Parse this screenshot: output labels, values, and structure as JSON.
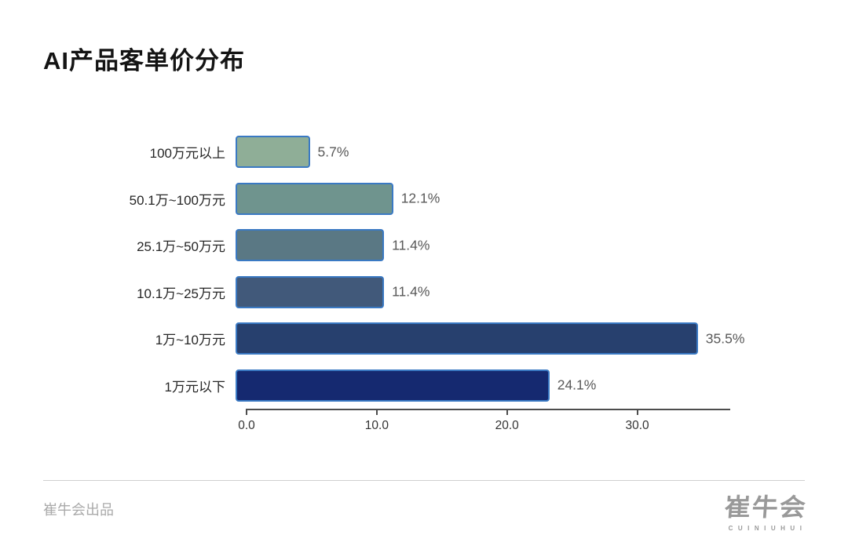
{
  "page": {
    "title": "AI产品客单价分布",
    "background": "#ffffff"
  },
  "chart_data": {
    "type": "bar",
    "orientation": "horizontal",
    "title": "AI产品客单价分布",
    "categories": [
      "100万元以上",
      "50.1万~100万元",
      "25.1万~50万元",
      "10.1万~25万元",
      "1万~10万元",
      "1万元以下"
    ],
    "values": [
      5.7,
      12.1,
      11.4,
      11.4,
      35.5,
      24.1
    ],
    "value_labels": [
      "5.7%",
      "12.1%",
      "11.4%",
      "11.4%",
      "35.5%",
      "24.1%"
    ],
    "bar_colors": [
      "#8fae97",
      "#6f948e",
      "#5a7884",
      "#41597a",
      "#27406e",
      "#152970"
    ],
    "bar_border_color": "#3a79c3",
    "x_ticks": [
      0,
      10,
      20,
      30
    ],
    "x_tick_labels": [
      "0.0",
      "10.0",
      "20.0",
      "30.0"
    ],
    "xlim": [
      0,
      37.2
    ],
    "xlabel": "",
    "ylabel": "",
    "grid": false,
    "legend": false
  },
  "footer": {
    "credit": "崔牛会出品",
    "logo_text": "崔牛会",
    "logo_subtext": "CUINIUHUI"
  }
}
